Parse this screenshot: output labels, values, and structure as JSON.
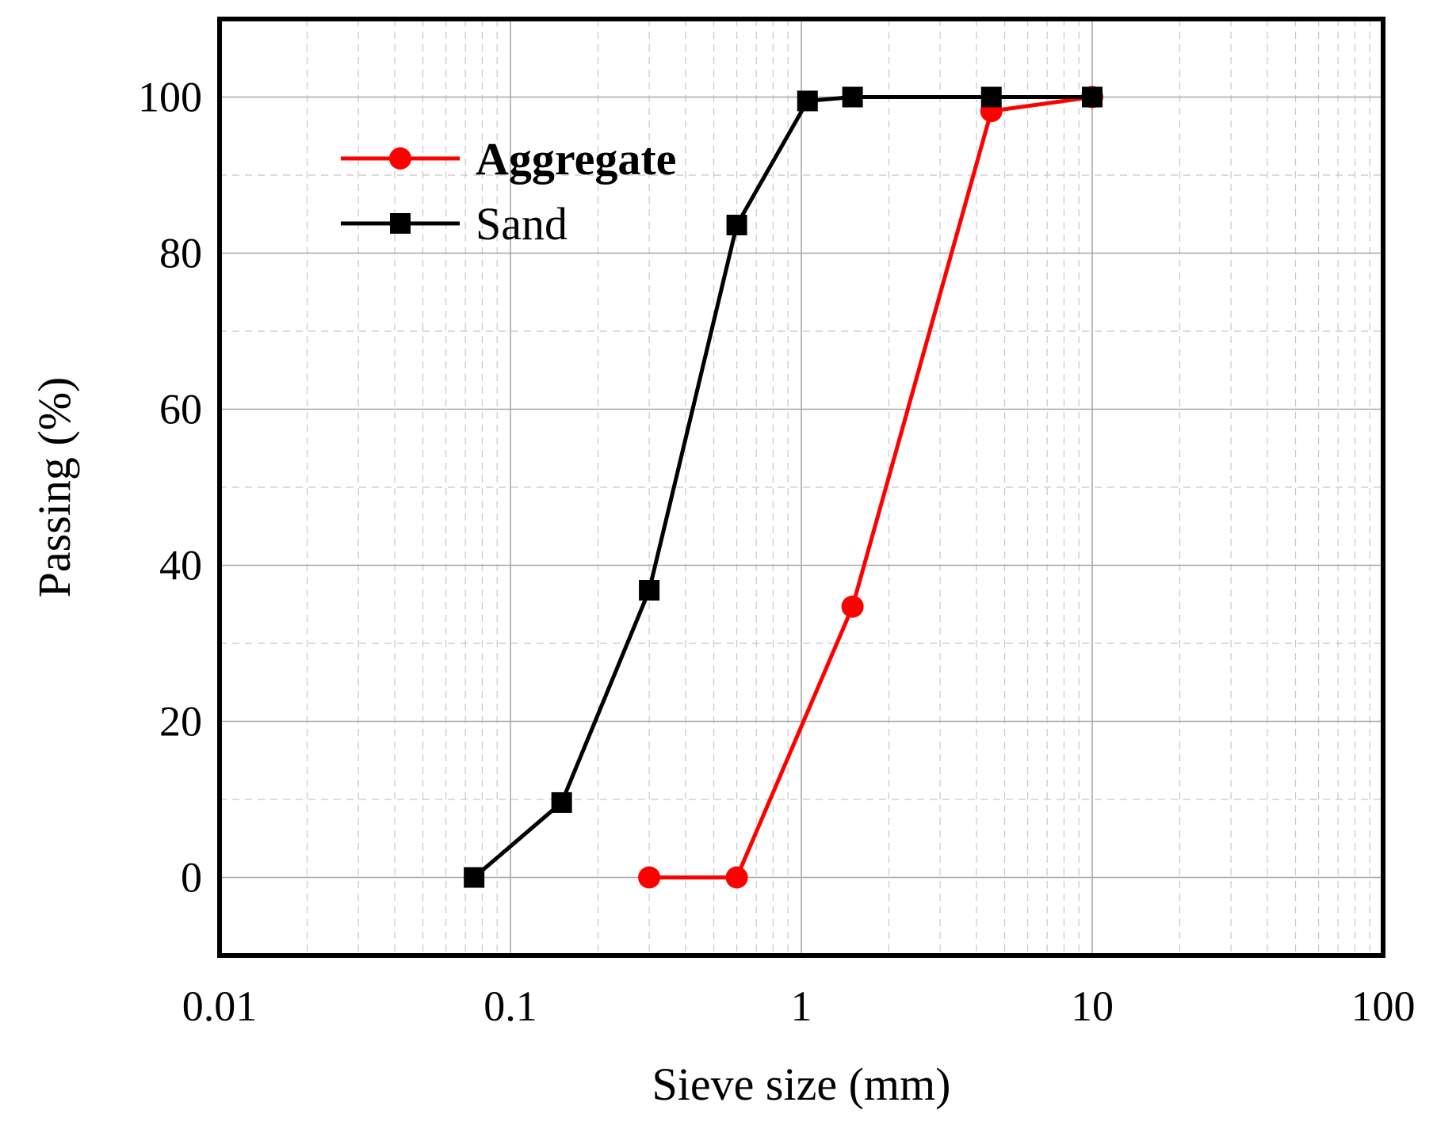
{
  "chart_data": {
    "type": "line",
    "x_scale": "log",
    "xlabel": "Sieve size (mm)",
    "ylabel": "Passing (%)",
    "xlim": [
      0.01,
      100
    ],
    "ylim": [
      -10,
      110
    ],
    "x_ticks": [
      0.01,
      0.1,
      1,
      10,
      100
    ],
    "x_tick_labels": [
      "0.01",
      "0.1",
      "1",
      "10",
      "100"
    ],
    "y_ticks": [
      0,
      20,
      40,
      60,
      80,
      100
    ],
    "y_tick_labels": [
      "0",
      "20",
      "40",
      "60",
      "80",
      "100"
    ],
    "grid": true,
    "legend_position": "top-left",
    "series": [
      {
        "name": "Aggregate",
        "color": "#ff0000",
        "marker": "circle",
        "x": [
          0.3,
          0.6,
          1.5,
          4.5,
          10
        ],
        "y": [
          0,
          0,
          34.7,
          98.2,
          100
        ]
      },
      {
        "name": "Sand",
        "color": "#000000",
        "marker": "square",
        "x": [
          0.075,
          0.15,
          0.3,
          0.6,
          1.05,
          1.5,
          4.5,
          10
        ],
        "y": [
          0,
          9.6,
          36.8,
          83.6,
          99.5,
          100,
          100,
          100
        ]
      }
    ]
  }
}
